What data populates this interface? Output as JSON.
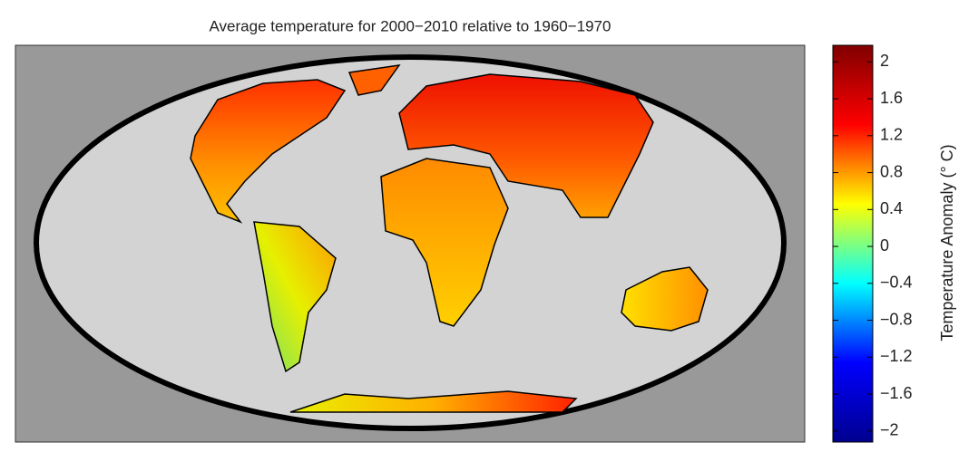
{
  "map": {
    "title": "Average temperature for 2000−2010 relative to 1960−1970",
    "colorbar": {
      "label": "Temperature Anomaly (° C)",
      "lim": [
        -2.12,
        2.18
      ],
      "colormap": [
        "#00008f",
        "#0000ff",
        "#00ffff",
        "#ffff00",
        "#ff0000",
        "#800000"
      ],
      "ticks": [
        {
          "value": -2,
          "label": "−2"
        },
        {
          "value": -1.6,
          "label": "−1.6"
        },
        {
          "value": -1.2,
          "label": "−1.2"
        },
        {
          "value": -0.8,
          "label": "−0.8"
        },
        {
          "value": -0.4,
          "label": "−0.4"
        },
        0,
        0.4,
        0.8,
        1.2,
        1.6,
        2
      ]
    }
  }
}
